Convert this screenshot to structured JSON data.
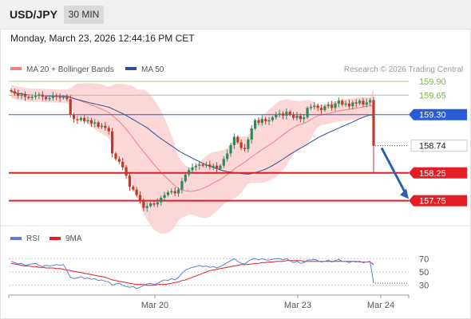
{
  "header": {
    "symbol": "USD/JPY",
    "timeframe": "30 MIN"
  },
  "datetime": "Monday, March 23, 2026 12:44:16 PM CET",
  "credit": "Research © 2026 Trading Central",
  "colors": {
    "bollinger_band": "#f9c9c9",
    "ma20": "#f08080",
    "ma50": "#2e4f9c",
    "candle_up": "#2e8b57",
    "candle_down": "#c0392b",
    "resistance": "#a5d07a",
    "pivot": "#2a5bd7",
    "support": "#e31e24",
    "arrow": "#2a62b0",
    "rsi": "#5b7fd6",
    "rsi_ma": "#e31e24"
  },
  "chart_data": [
    {
      "type": "candlestick",
      "legend": [
        {
          "label": "MA 20 + Bollinger Bands",
          "color": "#f08080"
        },
        {
          "label": "MA 50",
          "color": "#2e4f9c"
        }
      ],
      "price_range": [
        157.6,
        160.0
      ],
      "x_ticks": [
        "Mar 20",
        "Mar 23",
        "Mar 24"
      ],
      "levels": [
        {
          "price": 159.9,
          "label": "159.90",
          "kind": "resistance"
        },
        {
          "price": 159.65,
          "label": "159.65",
          "kind": "resistance"
        },
        {
          "price": 159.3,
          "label": "159.30",
          "kind": "pivot"
        },
        {
          "price": 158.74,
          "label": "158.74",
          "kind": "current"
        },
        {
          "price": 158.25,
          "label": "158.25",
          "kind": "support"
        },
        {
          "price": 157.75,
          "label": "157.75",
          "kind": "support"
        }
      ],
      "forecast_arrow": {
        "from": 158.7,
        "to": 157.78
      },
      "close_path": [
        159.72,
        159.68,
        159.64,
        159.66,
        159.62,
        159.6,
        159.62,
        159.64,
        159.66,
        159.62,
        159.58,
        159.6,
        159.64,
        159.62,
        159.6,
        159.62,
        159.58,
        159.3,
        159.22,
        159.2,
        159.24,
        159.18,
        159.2,
        159.14,
        159.16,
        159.08,
        159.1,
        159.06,
        159.0,
        158.6,
        158.5,
        158.45,
        158.35,
        158.2,
        158.0,
        157.95,
        157.85,
        157.75,
        157.62,
        157.65,
        157.7,
        157.68,
        157.72,
        157.8,
        157.85,
        157.9,
        157.92,
        157.88,
        157.95,
        158.1,
        158.22,
        158.3,
        158.35,
        158.38,
        158.4,
        158.38,
        158.4,
        158.36,
        158.38,
        158.32,
        158.38,
        158.5,
        158.6,
        158.75,
        158.9,
        158.8,
        158.7,
        158.68,
        158.85,
        159.05,
        159.2,
        159.15,
        159.22,
        159.18,
        159.2,
        159.25,
        159.3,
        159.32,
        159.28,
        159.35,
        159.3,
        159.24,
        159.28,
        159.22,
        159.25,
        159.42,
        159.44,
        159.46,
        159.42,
        159.38,
        159.45,
        159.48,
        159.42,
        159.5,
        159.55,
        159.48,
        159.5,
        159.45,
        159.52,
        159.5,
        159.55,
        159.48,
        159.52,
        159.56,
        158.74
      ]
    },
    {
      "type": "line",
      "title": "RSI",
      "legend": [
        {
          "label": "RSI",
          "color": "#5b7fd6"
        },
        {
          "label": "9MA",
          "color": "#e31e24"
        }
      ],
      "ylim": [
        20,
        80
      ],
      "yticks": [
        70,
        50,
        30
      ],
      "rsi": [
        66,
        64,
        62,
        63,
        60,
        61,
        62,
        63,
        60,
        58,
        60,
        59,
        60,
        61,
        60,
        61,
        52,
        42,
        40,
        41,
        43,
        40,
        41,
        39,
        40,
        37,
        38,
        36,
        35,
        30,
        32,
        33,
        30,
        28,
        27,
        28,
        25,
        27,
        30,
        32,
        33,
        31,
        33,
        36,
        38,
        37,
        40,
        38,
        42,
        48,
        53,
        55,
        57,
        58,
        60,
        58,
        59,
        57,
        58,
        56,
        58,
        61,
        64,
        67,
        70,
        66,
        63,
        62,
        66,
        69,
        70,
        68,
        70,
        68,
        68,
        69,
        70,
        70,
        68,
        70,
        67,
        64,
        66,
        63,
        64,
        68,
        68,
        69,
        67,
        65,
        66,
        68,
        65,
        67,
        69,
        66,
        66,
        64,
        66,
        65,
        66,
        64,
        65,
        66,
        33
      ],
      "ma9": [
        63,
        62,
        61,
        60,
        59,
        59,
        58,
        58,
        57,
        57,
        56,
        56,
        56,
        55,
        55,
        54,
        53,
        52,
        51,
        50,
        49,
        48,
        47,
        46,
        45,
        44,
        43,
        42,
        40,
        38,
        37,
        36,
        35,
        34,
        33,
        32,
        31,
        31,
        31,
        30,
        30,
        30,
        31,
        31,
        31,
        32,
        33,
        34,
        35,
        37,
        38,
        40,
        42,
        44,
        46,
        48,
        50,
        52,
        53,
        54,
        55,
        56,
        57,
        58,
        59,
        60,
        61,
        61,
        61,
        62,
        63,
        63,
        64,
        64,
        65,
        65,
        66,
        66,
        66,
        67,
        67,
        67,
        67,
        67,
        66,
        66,
        66,
        66,
        66,
        66,
        66,
        66,
        66,
        66,
        66,
        66,
        66,
        66,
        66,
        66,
        65,
        65,
        65,
        65,
        61
      ]
    }
  ]
}
